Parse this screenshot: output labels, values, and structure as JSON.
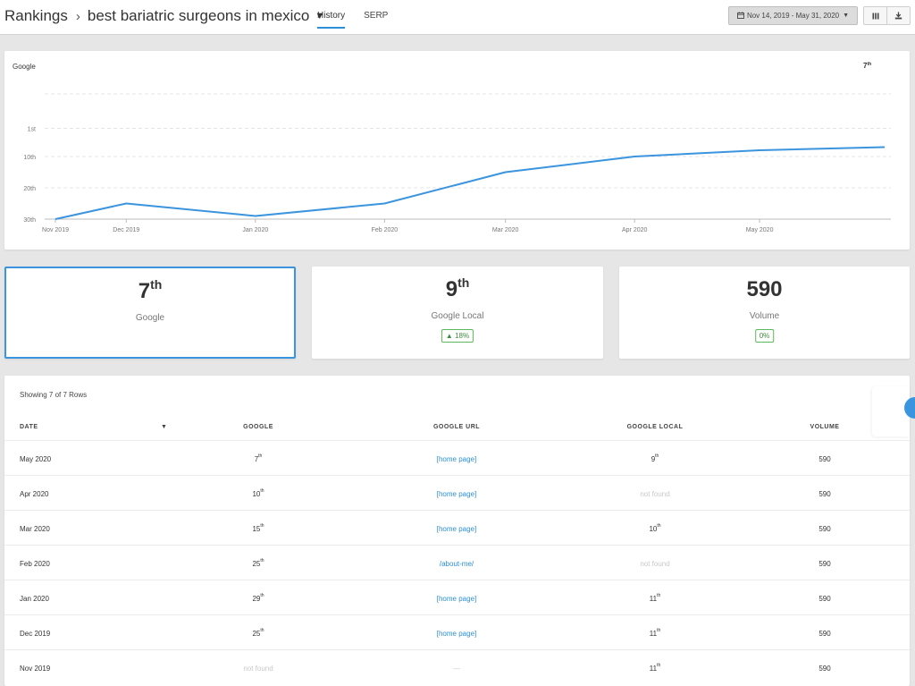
{
  "header": {
    "breadcrumb_root": "Rankings",
    "breadcrumb_sep": "›",
    "keyword": "best bariatric surgeons in mexico",
    "tabs": [
      {
        "label": "History",
        "active": true
      },
      {
        "label": "SERP",
        "active": false
      }
    ],
    "date_range": "Nov 14, 2019 - May 31, 2020",
    "columns_icon": "columns-icon",
    "download_icon": "download-icon"
  },
  "chart_data": {
    "type": "line",
    "series_label": "Google",
    "current_label": "7",
    "current_suffix": "th",
    "y_ticks": [
      "1st",
      "10th",
      "20th",
      "30th"
    ],
    "y_tick_values": [
      1,
      10,
      20,
      30
    ],
    "ylim": [
      30,
      -10
    ],
    "reversed_y": true,
    "x_ticks": [
      "Nov 2019",
      "Dec 2019",
      "Jan 2020",
      "Feb 2020",
      "Mar 2020",
      "Apr 2020",
      "May 2020"
    ],
    "x": [
      "2019-11-14",
      "2019-12-01",
      "2020-01-01",
      "2020-02-01",
      "2020-03-01",
      "2020-04-01",
      "2020-05-01",
      "2020-05-31"
    ],
    "values": [
      30,
      25,
      29,
      25,
      15,
      10,
      8,
      7
    ],
    "line_color": "#3b94de",
    "grid": true
  },
  "stats": [
    {
      "value": "7",
      "suffix": "th",
      "label": "Google",
      "badge": "",
      "selected": true
    },
    {
      "value": "9",
      "suffix": "th",
      "label": "Google Local",
      "badge": "▲ 18%",
      "selected": false
    },
    {
      "value": "590",
      "suffix": "",
      "label": "Volume",
      "badge": "0%",
      "selected": false
    }
  ],
  "table": {
    "showing": "Showing 7 of 7 Rows",
    "columns": [
      "DATE",
      "GOOGLE",
      "GOOGLE URL",
      "GOOGLE LOCAL",
      "VOLUME"
    ],
    "rows": [
      {
        "date": "May 2020",
        "google": "7",
        "google_sfx": "th",
        "url": "[home page]",
        "local": "9",
        "local_sfx": "th",
        "volume": "590"
      },
      {
        "date": "Apr 2020",
        "google": "10",
        "google_sfx": "th",
        "url": "[home page]",
        "local": "not found",
        "local_sfx": "",
        "volume": "590"
      },
      {
        "date": "Mar 2020",
        "google": "15",
        "google_sfx": "th",
        "url": "[home page]",
        "local": "10",
        "local_sfx": "th",
        "volume": "590"
      },
      {
        "date": "Feb 2020",
        "google": "25",
        "google_sfx": "th",
        "url": "/about-me/",
        "local": "not found",
        "local_sfx": "",
        "volume": "590"
      },
      {
        "date": "Jan 2020",
        "google": "29",
        "google_sfx": "th",
        "url": "[home page]",
        "local": "11",
        "local_sfx": "th",
        "volume": "590"
      },
      {
        "date": "Dec 2019",
        "google": "25",
        "google_sfx": "th",
        "url": "[home page]",
        "local": "11",
        "local_sfx": "th",
        "volume": "590"
      },
      {
        "date": "Nov 2019",
        "google": "not found",
        "google_sfx": "",
        "url": "—",
        "local": "11",
        "local_sfx": "th",
        "volume": "590"
      }
    ]
  }
}
